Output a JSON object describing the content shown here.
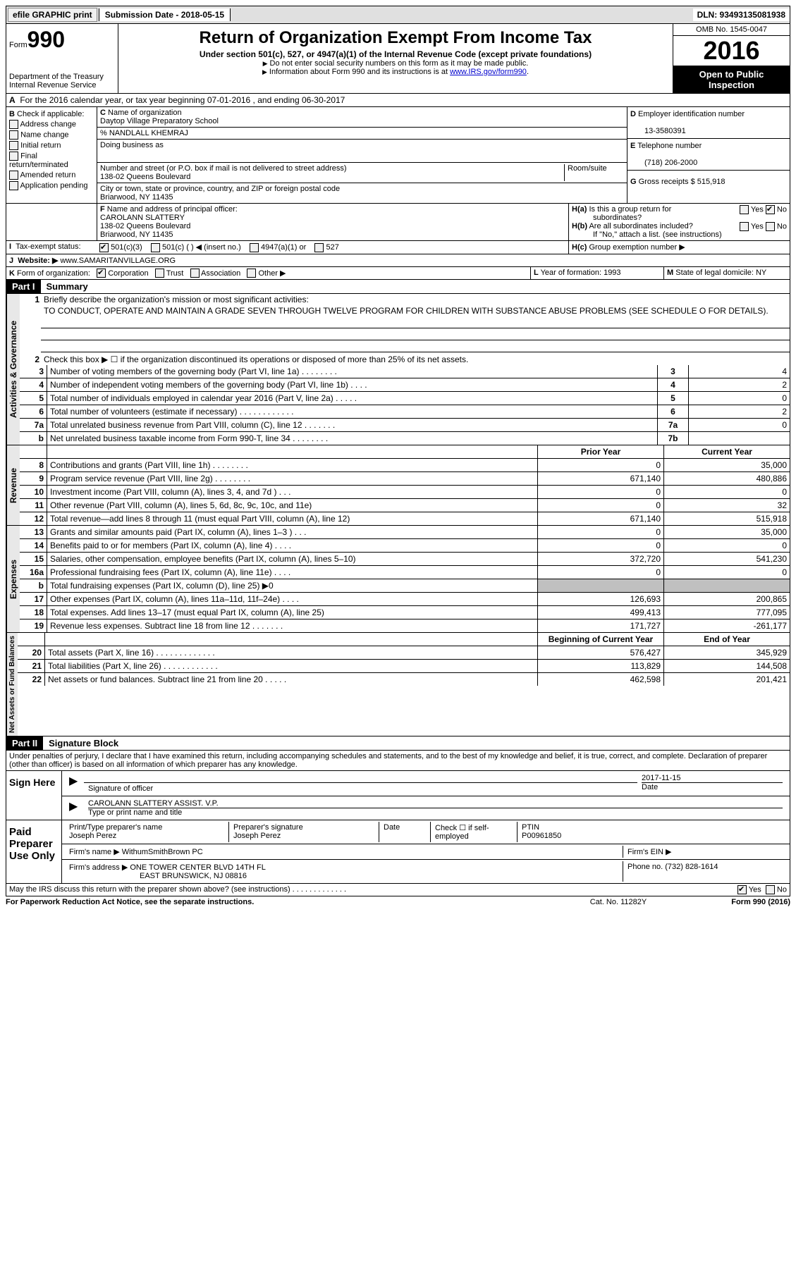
{
  "topbar": {
    "efile": "efile GRAPHIC print",
    "submission": "Submission Date - 2018-05-15",
    "dln": "DLN: 93493135081938"
  },
  "header": {
    "form_label": "Form",
    "form_number": "990",
    "dept": "Department of the Treasury",
    "irs": "Internal Revenue Service",
    "title": "Return of Organization Exempt From Income Tax",
    "subtitle": "Under section 501(c), 527, or 4947(a)(1) of the Internal Revenue Code (except private foundations)",
    "note1": "Do not enter social security numbers on this form as it may be made public.",
    "note2": "Information about Form 990 and its instructions is at ",
    "link": "www.IRS.gov/form990",
    "omb": "OMB No. 1545-0047",
    "year": "2016",
    "inspect": "Open to Public Inspection"
  },
  "section_a": "For the 2016 calendar year, or tax year beginning 07-01-2016   , and ending 06-30-2017",
  "b": {
    "label": "Check if applicable:",
    "items": [
      "Address change",
      "Name change",
      "Initial return",
      "Final return/terminated",
      "Amended return",
      "Application pending"
    ]
  },
  "c": {
    "name_label": "Name of organization",
    "name": "Daytop Village Preparatory School",
    "care_of": "% NANDLALL KHEMRAJ",
    "dba_label": "Doing business as",
    "street_label": "Number and street (or P.O. box if mail is not delivered to street address)",
    "room_label": "Room/suite",
    "street": "138-02 Queens Boulevard",
    "city_label": "City or town, state or province, country, and ZIP or foreign postal code",
    "city": "Briarwood, NY  11435"
  },
  "d": {
    "ein_label": "Employer identification number",
    "ein": "13-3580391",
    "phone_label": "Telephone number",
    "phone": "(718) 206-2000",
    "receipts_label": "Gross receipts $ 515,918"
  },
  "f": {
    "label": "Name and address of principal officer:",
    "name": "CAROLANN SLATTERY",
    "addr1": "138-02 Queens Boulevard",
    "addr2": "Briarwood, NY  11435"
  },
  "h": {
    "a": "Is this a group return for",
    "a2": "subordinates?",
    "b": "Are all subordinates included?",
    "b2": "If \"No,\" attach a list. (see instructions)",
    "c": "Group exemption number ▶"
  },
  "i": {
    "label": "Tax-exempt status:",
    "opts": [
      "501(c)(3)",
      "501(c) (   ) ◀ (insert no.)",
      "4947(a)(1) or",
      "527"
    ]
  },
  "j": {
    "label": "Website: ▶",
    "value": "www.SAMARITANVILLAGE.ORG"
  },
  "k": {
    "label": "Form of organization:",
    "opts": [
      "Corporation",
      "Trust",
      "Association",
      "Other ▶"
    ]
  },
  "l": "Year of formation: 1993",
  "m": "State of legal domicile: NY",
  "part1": {
    "header": "Part I",
    "title": "Summary",
    "mission_label": "Briefly describe the organization's mission or most significant activities:",
    "mission": "TO CONDUCT, OPERATE AND MAINTAIN A GRADE SEVEN THROUGH TWELVE PROGRAM FOR CHILDREN WITH SUBSTANCE ABUSE PROBLEMS (SEE SCHEDULE O FOR DETAILS).",
    "line2": "Check this box ▶ ☐  if the organization discontinued its operations or disposed of more than 25% of its net assets.",
    "vert_gov": "Activities & Governance",
    "vert_rev": "Revenue",
    "vert_exp": "Expenses",
    "vert_net": "Net Assets or Fund Balances",
    "gov_lines": [
      {
        "n": "3",
        "d": "Number of voting members of the governing body (Part VI, line 1a)  .   .   .   .   .   .   .   .",
        "ln": "3",
        "v": "4"
      },
      {
        "n": "4",
        "d": "Number of independent voting members of the governing body (Part VI, line 1b)   .   .   .   .",
        "ln": "4",
        "v": "2"
      },
      {
        "n": "5",
        "d": "Total number of individuals employed in calendar year 2016 (Part V, line 2a)   .   .   .   .   .",
        "ln": "5",
        "v": "0"
      },
      {
        "n": "6",
        "d": "Total number of volunteers (estimate if necessary)    .   .   .   .   .   .   .   .   .   .   .   .",
        "ln": "6",
        "v": "2"
      },
      {
        "n": "7a",
        "d": "Total unrelated business revenue from Part VIII, column (C), line 12    .   .   .   .   .   .   .",
        "ln": "7a",
        "v": "0"
      },
      {
        "n": "b",
        "d": "Net unrelated business taxable income from Form 990-T, line 34   .   .   .   .   .   .   .   .",
        "ln": "7b",
        "v": ""
      }
    ],
    "col_prior": "Prior Year",
    "col_current": "Current Year",
    "rev_lines": [
      {
        "n": "8",
        "d": "Contributions and grants (Part VIII, line 1h)   .   .   .   .   .   .   .   .",
        "p": "0",
        "c": "35,000"
      },
      {
        "n": "9",
        "d": "Program service revenue (Part VIII, line 2g)  .   .   .   .   .   .   .   .",
        "p": "671,140",
        "c": "480,886"
      },
      {
        "n": "10",
        "d": "Investment income (Part VIII, column (A), lines 3, 4, and 7d )   .   .   .",
        "p": "0",
        "c": "0"
      },
      {
        "n": "11",
        "d": "Other revenue (Part VIII, column (A), lines 5, 6d, 8c, 9c, 10c, and 11e)",
        "p": "0",
        "c": "32"
      },
      {
        "n": "12",
        "d": "Total revenue—add lines 8 through 11 (must equal Part VIII, column (A), line 12)",
        "p": "671,140",
        "c": "515,918"
      }
    ],
    "exp_lines": [
      {
        "n": "13",
        "d": "Grants and similar amounts paid (Part IX, column (A), lines 1–3 )  .   .   .",
        "p": "0",
        "c": "35,000"
      },
      {
        "n": "14",
        "d": "Benefits paid to or for members (Part IX, column (A), line 4)   .   .   .   .",
        "p": "0",
        "c": "0"
      },
      {
        "n": "15",
        "d": "Salaries, other compensation, employee benefits (Part IX, column (A), lines 5–10)",
        "p": "372,720",
        "c": "541,230"
      },
      {
        "n": "16a",
        "d": "Professional fundraising fees (Part IX, column (A), line 11e)   .   .   .   .",
        "p": "0",
        "c": "0"
      },
      {
        "n": "b",
        "d": "Total fundraising expenses (Part IX, column (D), line 25) ▶0",
        "p": "",
        "c": "",
        "shade": true
      },
      {
        "n": "17",
        "d": "Other expenses (Part IX, column (A), lines 11a–11d, 11f–24e)   .   .   .   .",
        "p": "126,693",
        "c": "200,865"
      },
      {
        "n": "18",
        "d": "Total expenses. Add lines 13–17 (must equal Part IX, column (A), line 25)",
        "p": "499,413",
        "c": "777,095"
      },
      {
        "n": "19",
        "d": "Revenue less expenses. Subtract line 18 from line 12  .   .   .   .   .   .   .",
        "p": "171,727",
        "c": "-261,177"
      }
    ],
    "col_begin": "Beginning of Current Year",
    "col_end": "End of Year",
    "net_lines": [
      {
        "n": "20",
        "d": "Total assets (Part X, line 16)  .   .   .   .   .   .   .   .   .   .   .   .   .",
        "p": "576,427",
        "c": "345,929"
      },
      {
        "n": "21",
        "d": "Total liabilities (Part X, line 26)  .   .   .   .   .   .   .   .   .   .   .   .",
        "p": "113,829",
        "c": "144,508"
      },
      {
        "n": "22",
        "d": "Net assets or fund balances. Subtract line 21 from line 20   .   .   .   .   .",
        "p": "462,598",
        "c": "201,421"
      }
    ]
  },
  "part2": {
    "header": "Part II",
    "title": "Signature Block",
    "declaration": "Under penalties of perjury, I declare that I have examined this return, including accompanying schedules and statements, and to the best of my knowledge and belief, it is true, correct, and complete. Declaration of preparer (other than officer) is based on all information of which preparer has any knowledge.",
    "sign_here": "Sign Here",
    "sig_officer": "Signature of officer",
    "date_label": "Date",
    "sig_date": "2017-11-15",
    "officer_name": "CAROLANN SLATTERY ASSIST. V.P.",
    "type_name": "Type or print name and title",
    "paid_label": "Paid Preparer Use Only",
    "prep_name_label": "Print/Type preparer's name",
    "prep_name": "Joseph Perez",
    "prep_sig_label": "Preparer's signature",
    "prep_sig": "Joseph Perez",
    "check_label": "Check ☐ if self-employed",
    "ptin_label": "PTIN",
    "ptin": "P00961850",
    "firm_name_label": "Firm's name    ▶",
    "firm_name": "WithumSmithBrown PC",
    "firm_ein_label": "Firm's EIN ▶",
    "firm_addr_label": "Firm's address ▶",
    "firm_addr": "ONE TOWER CENTER BLVD 14TH FL",
    "firm_city": "EAST BRUNSWICK, NJ  08816",
    "firm_phone_label": "Phone no. (732) 828-1614",
    "discuss": "May the IRS discuss this return with the preparer shown above? (see instructions)   .   .   .   .   .   .   .   .   .   .   .   .   ."
  },
  "footer": {
    "left": "For Paperwork Reduction Act Notice, see the separate instructions.",
    "mid": "Cat. No. 11282Y",
    "right": "Form 990 (2016)"
  }
}
